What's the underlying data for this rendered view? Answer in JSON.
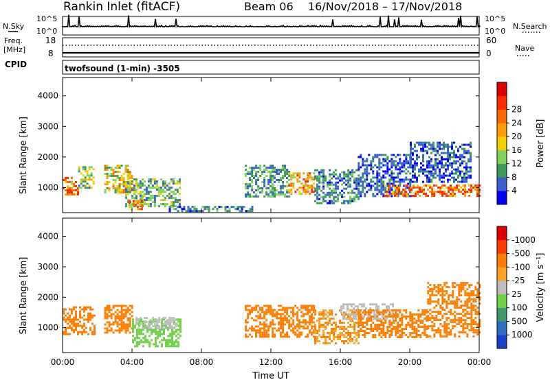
{
  "header": {
    "station": "Rankin Inlet (fitACF)",
    "beam": "Beam 06",
    "date_range": "16/Nov/2018 – 17/Nov/2018"
  },
  "top_strip": {
    "nsky_label": "N.Sky",
    "nsky_ticks": [
      "10^5",
      "10^0"
    ],
    "nsearch_label": "N.Search",
    "nsearch_ticks": [
      "10^5",
      "10^0"
    ],
    "freq_label": "Freq.",
    "freq_unit": "[MHz]",
    "freq_ticks": [
      "18",
      "8"
    ],
    "nave_label": "Nave",
    "nave_ticks": [
      "60",
      "0"
    ],
    "cpid_label": "CPID",
    "cpid_value": "twofsound (1-min) -3505"
  },
  "chart_data": [
    {
      "type": "heatmap",
      "ylabel": "Slant Range [km]",
      "xlabel": "",
      "ylim": [
        180,
        4600
      ],
      "yticks": [
        "1000",
        "2000",
        "3000",
        "4000"
      ],
      "ytick_values": [
        1000,
        2000,
        3000,
        4000
      ],
      "xlim": [
        0,
        24
      ],
      "colorbar": {
        "label": "Power [dB]",
        "ticks": [
          "4",
          "8",
          "12",
          "16",
          "20",
          "24",
          "28"
        ],
        "colors": [
          "#0000ff",
          "#3a5fd0",
          "#3d9b5a",
          "#7fd35a",
          "#f2d000",
          "#ff9d00",
          "#ff6a00",
          "#ff2a00",
          "#e00000"
        ]
      },
      "echo_regions": [
        {
          "t0": 0.0,
          "t1": 0.9,
          "r0": 800,
          "r1": 1350,
          "value": 26
        },
        {
          "t0": 0.9,
          "t1": 1.8,
          "r0": 1000,
          "r1": 1700,
          "value": 14
        },
        {
          "t0": 2.4,
          "t1": 4.0,
          "r0": 850,
          "r1": 1750,
          "value": 18
        },
        {
          "t0": 3.6,
          "t1": 6.8,
          "r0": 400,
          "r1": 1300,
          "value": 12
        },
        {
          "t0": 3.8,
          "t1": 4.6,
          "r0": 300,
          "r1": 600,
          "value": 24
        },
        {
          "t0": 10.5,
          "t1": 13.0,
          "r0": 700,
          "r1": 1750,
          "value": 10
        },
        {
          "t0": 13.0,
          "t1": 14.5,
          "r0": 800,
          "r1": 1500,
          "value": 22
        },
        {
          "t0": 14.5,
          "t1": 17.0,
          "r0": 500,
          "r1": 1600,
          "value": 8
        },
        {
          "t0": 17.0,
          "t1": 20.0,
          "r0": 700,
          "r1": 2100,
          "value": 6
        },
        {
          "t0": 18.5,
          "t1": 24.0,
          "r0": 750,
          "r1": 1100,
          "value": 26
        },
        {
          "t0": 20.0,
          "t1": 23.5,
          "r0": 1200,
          "r1": 2500,
          "value": 6
        },
        {
          "t0": 6.0,
          "t1": 11.0,
          "r0": 200,
          "r1": 400,
          "value": 8
        }
      ]
    },
    {
      "type": "heatmap",
      "ylabel": "Slant Range [km]",
      "xlabel": "Time UT",
      "ylim": [
        180,
        4600
      ],
      "yticks": [
        "1000",
        "2000",
        "3000",
        "4000"
      ],
      "ytick_values": [
        1000,
        2000,
        3000,
        4000
      ],
      "xlim": [
        0,
        24
      ],
      "xticks": [
        "00:00",
        "04:00",
        "08:00",
        "12:00",
        "16:00",
        "20:00",
        "00:00"
      ],
      "xtick_values": [
        0,
        4,
        8,
        12,
        16,
        20,
        24
      ],
      "colorbar": {
        "label": "Velocity [m s⁻¹]",
        "ticks": [
          "1000",
          "500",
          "100",
          "25",
          "-25",
          "-100",
          "-500",
          "-1000"
        ],
        "colors": [
          "#1a3fc8",
          "#2b6fc0",
          "#3e9a6a",
          "#6fd04a",
          "#bdbdbd",
          "#ffa22a",
          "#ff7d00",
          "#ff3b00",
          "#e00000"
        ]
      },
      "echo_regions": [
        {
          "t0": 0.0,
          "t1": 1.8,
          "r0": 800,
          "r1": 1700,
          "value": -300
        },
        {
          "t0": 2.4,
          "t1": 4.0,
          "r0": 850,
          "r1": 1750,
          "value": -300
        },
        {
          "t0": 4.0,
          "t1": 6.8,
          "r0": 400,
          "r1": 1300,
          "value": 50
        },
        {
          "t0": 4.2,
          "t1": 6.5,
          "r0": 1000,
          "r1": 1350,
          "value": 0
        },
        {
          "t0": 10.5,
          "t1": 14.5,
          "r0": 700,
          "r1": 1750,
          "value": -300
        },
        {
          "t0": 14.5,
          "t1": 17.0,
          "r0": 500,
          "r1": 1600,
          "value": -100
        },
        {
          "t0": 16.0,
          "t1": 19.0,
          "r0": 1300,
          "r1": 1800,
          "value": 0
        },
        {
          "t0": 17.0,
          "t1": 21.0,
          "r0": 700,
          "r1": 1600,
          "value": -300
        },
        {
          "t0": 21.0,
          "t1": 24.0,
          "r0": 700,
          "r1": 2500,
          "value": -200
        }
      ]
    }
  ]
}
